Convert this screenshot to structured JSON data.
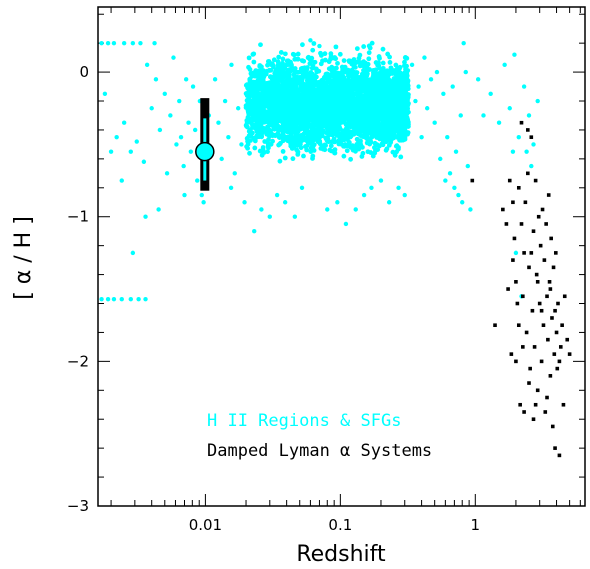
{
  "chart_data": {
    "type": "scatter",
    "title": "",
    "xlabel": "Redshift",
    "ylabel": "[ α / H ]",
    "xscale": "log",
    "xlim": [
      0.0016,
      6.5
    ],
    "ylim": [
      -3,
      0.45
    ],
    "x_ticks": [
      {
        "value": 0.01,
        "label": "0.01"
      },
      {
        "value": 0.1,
        "label": "0.1"
      },
      {
        "value": 1,
        "label": "1"
      }
    ],
    "y_ticks": [
      {
        "value": 0,
        "label": "0"
      },
      {
        "value": -1,
        "label": "−1"
      },
      {
        "value": -2,
        "label": "−2"
      },
      {
        "value": -3,
        "label": "−3"
      }
    ],
    "grid": false,
    "legend_placement": "bottom-center",
    "series": [
      {
        "name": "H II Regions & SFGs",
        "color": "#00ffff",
        "marker": "circle",
        "cloud": {
          "x_range": [
            0.02,
            0.32
          ],
          "y_range": [
            -0.6,
            0.15
          ],
          "approx_count": 4000
        },
        "values": [
          [
            0.0017,
            0.2
          ],
          [
            0.0019,
            0.2
          ],
          [
            0.0021,
            0.2
          ],
          [
            0.0025,
            0.2
          ],
          [
            0.0029,
            0.2
          ],
          [
            0.0033,
            0.2
          ],
          [
            0.0042,
            0.2
          ],
          [
            0.0017,
            -1.57
          ],
          [
            0.0019,
            -1.57
          ],
          [
            0.0021,
            -1.57
          ],
          [
            0.0024,
            -1.57
          ],
          [
            0.0028,
            -1.57
          ],
          [
            0.0032,
            -1.57
          ],
          [
            0.0036,
            -1.57
          ],
          [
            0.0022,
            -0.45
          ],
          [
            0.0025,
            -0.35
          ],
          [
            0.0028,
            -0.55
          ],
          [
            0.0031,
            -0.48
          ],
          [
            0.0035,
            -0.62
          ],
          [
            0.0037,
            0.05
          ],
          [
            0.004,
            -0.25
          ],
          [
            0.0043,
            -0.05
          ],
          [
            0.0046,
            -0.4
          ],
          [
            0.005,
            -0.15
          ],
          [
            0.0052,
            -0.7
          ],
          [
            0.0055,
            -0.3
          ],
          [
            0.0058,
            0.1
          ],
          [
            0.0061,
            -0.5
          ],
          [
            0.0064,
            -0.2
          ],
          [
            0.0066,
            -0.45
          ],
          [
            0.0069,
            -0.65
          ],
          [
            0.0072,
            -0.05
          ],
          [
            0.0075,
            -0.35
          ],
          [
            0.0078,
            -0.55
          ],
          [
            0.0081,
            -0.1
          ],
          [
            0.0084,
            -0.4
          ],
          [
            0.0087,
            -0.75
          ],
          [
            0.0091,
            -0.2
          ],
          [
            0.0094,
            -0.85
          ],
          [
            0.0097,
            -0.9
          ],
          [
            0.0106,
            -0.3
          ],
          [
            0.0112,
            -0.55
          ],
          [
            0.0118,
            -0.05
          ],
          [
            0.0125,
            -0.35
          ],
          [
            0.0132,
            -0.6
          ],
          [
            0.014,
            -0.2
          ],
          [
            0.0148,
            -0.45
          ],
          [
            0.0156,
            0.05
          ],
          [
            0.0165,
            -0.7
          ],
          [
            0.0175,
            -0.25
          ],
          [
            0.0185,
            -0.5
          ],
          [
            0.0195,
            -0.9
          ],
          [
            0.021,
            -0.15
          ],
          [
            0.023,
            -1.1
          ],
          [
            0.0036,
            -1.0
          ],
          [
            0.0029,
            -1.25
          ],
          [
            0.0024,
            -0.75
          ],
          [
            0.002,
            -0.55
          ],
          [
            0.0018,
            -0.15
          ],
          [
            0.0045,
            -0.95
          ],
          [
            0.007,
            -0.85
          ],
          [
            0.0155,
            -0.8
          ],
          [
            0.026,
            -0.95
          ],
          [
            0.03,
            -1.0
          ],
          [
            0.034,
            -0.85
          ],
          [
            0.039,
            -0.9
          ],
          [
            0.046,
            -1.0
          ],
          [
            0.052,
            -0.8
          ],
          [
            0.06,
            0.22
          ],
          [
            0.07,
            0.18
          ],
          [
            0.08,
            -0.95
          ],
          [
            0.095,
            -0.9
          ],
          [
            0.11,
            -1.05
          ],
          [
            0.13,
            -0.95
          ],
          [
            0.15,
            -0.85
          ],
          [
            0.17,
            -0.8
          ],
          [
            0.2,
            -0.75
          ],
          [
            0.23,
            -0.9
          ],
          [
            0.27,
            -0.8
          ],
          [
            0.3,
            -0.85
          ],
          [
            0.34,
            0.05
          ],
          [
            0.36,
            -0.2
          ],
          [
            0.38,
            -0.1
          ],
          [
            0.4,
            -0.45
          ],
          [
            0.42,
            0.1
          ],
          [
            0.44,
            -0.25
          ],
          [
            0.47,
            -0.05
          ],
          [
            0.5,
            -0.35
          ],
          [
            0.52,
            0.0
          ],
          [
            0.55,
            -0.6
          ],
          [
            0.58,
            -0.15
          ],
          [
            0.62,
            -0.45
          ],
          [
            0.65,
            -0.7
          ],
          [
            0.68,
            -0.1
          ],
          [
            0.72,
            -0.55
          ],
          [
            0.75,
            -0.85
          ],
          [
            0.78,
            -0.3
          ],
          [
            0.82,
            0.2
          ],
          [
            0.85,
            0.0
          ],
          [
            0.88,
            -0.65
          ],
          [
            0.92,
            -0.95
          ],
          [
            0.8,
            -0.9
          ],
          [
            0.7,
            -0.8
          ],
          [
            0.6,
            -0.75
          ],
          [
            1.05,
            -0.05
          ],
          [
            1.15,
            -0.3
          ],
          [
            1.3,
            -0.15
          ],
          [
            1.5,
            -0.35
          ],
          [
            1.65,
            0.05
          ],
          [
            1.8,
            -0.25
          ],
          [
            1.95,
            0.12
          ],
          [
            2.1,
            -0.45
          ],
          [
            2.3,
            -0.1
          ],
          [
            2.5,
            -0.3
          ],
          [
            2.7,
            -0.5
          ],
          [
            2.9,
            -0.2
          ],
          [
            2.4,
            -0.55
          ],
          [
            2.6,
            -0.65
          ],
          [
            2.0,
            -1.25
          ],
          [
            2.2,
            -1.55
          ],
          [
            1.9,
            -0.55
          ]
        ]
      },
      {
        "name": "Damped Lyman α Systems",
        "color": "#000000",
        "marker": "square",
        "values": [
          [
            0.95,
            -0.75
          ],
          [
            1.4,
            -1.75
          ],
          [
            1.6,
            -0.95
          ],
          [
            1.7,
            -1.05
          ],
          [
            1.75,
            -1.5
          ],
          [
            1.8,
            -0.75
          ],
          [
            1.85,
            -1.95
          ],
          [
            1.9,
            -0.9
          ],
          [
            1.95,
            -1.15
          ],
          [
            2.0,
            -1.45
          ],
          [
            2.05,
            -1.6
          ],
          [
            2.1,
            -0.8
          ],
          [
            2.15,
            -2.3
          ],
          [
            2.2,
            -1.05
          ],
          [
            2.25,
            -1.55
          ],
          [
            2.3,
            -1.25
          ],
          [
            2.35,
            -0.9
          ],
          [
            2.4,
            -1.8
          ],
          [
            2.45,
            -0.4
          ],
          [
            2.5,
            -1.35
          ],
          [
            2.55,
            -2.05
          ],
          [
            2.6,
            -0.45
          ],
          [
            2.65,
            -1.65
          ],
          [
            2.7,
            -1.1
          ],
          [
            2.75,
            -1.9
          ],
          [
            2.8,
            -0.75
          ],
          [
            2.85,
            -1.4
          ],
          [
            2.9,
            -2.2
          ],
          [
            2.95,
            -1.0
          ],
          [
            3.0,
            -1.6
          ],
          [
            3.05,
            -1.2
          ],
          [
            3.1,
            -2.0
          ],
          [
            3.15,
            -0.95
          ],
          [
            3.2,
            -1.75
          ],
          [
            3.25,
            -1.3
          ],
          [
            3.3,
            -2.35
          ],
          [
            3.35,
            -1.05
          ],
          [
            3.4,
            -1.55
          ],
          [
            3.45,
            -1.85
          ],
          [
            3.5,
            -0.85
          ],
          [
            3.55,
            -1.45
          ],
          [
            3.6,
            -2.1
          ],
          [
            3.65,
            -1.15
          ],
          [
            3.7,
            -1.7
          ],
          [
            3.75,
            -2.45
          ],
          [
            3.8,
            -1.35
          ],
          [
            3.85,
            -1.95
          ],
          [
            3.9,
            -2.6
          ],
          [
            3.95,
            -1.25
          ],
          [
            4.0,
            -1.8
          ],
          [
            4.05,
            -2.05
          ],
          [
            4.1,
            -1.6
          ],
          [
            4.2,
            -2.65
          ],
          [
            4.3,
            -1.9
          ],
          [
            4.4,
            -1.75
          ],
          [
            4.5,
            -2.3
          ],
          [
            4.6,
            -1.55
          ],
          [
            4.8,
            -1.85
          ],
          [
            5.0,
            -1.95
          ],
          [
            2.0,
            -2.0
          ],
          [
            2.25,
            -1.9
          ],
          [
            2.5,
            -2.15
          ],
          [
            2.7,
            -2.4
          ],
          [
            2.9,
            -1.45
          ],
          [
            3.1,
            -1.65
          ],
          [
            3.4,
            -2.25
          ],
          [
            1.9,
            -1.3
          ],
          [
            2.1,
            -1.75
          ],
          [
            2.3,
            -2.35
          ],
          [
            2.6,
            -1.25
          ],
          [
            2.8,
            -2.3
          ],
          [
            3.6,
            -1.5
          ],
          [
            3.9,
            -1.65
          ],
          [
            4.2,
            -2.0
          ],
          [
            2.2,
            -0.35
          ],
          [
            2.45,
            -0.7
          ]
        ]
      }
    ],
    "highlight": {
      "x": 0.0099,
      "y": -0.55,
      "error_bar": [
        -0.82,
        -0.18
      ],
      "inner_error_bar": [
        -0.75,
        -0.32
      ],
      "marker_color": "#00ffff",
      "bar_color": "#000000"
    }
  }
}
